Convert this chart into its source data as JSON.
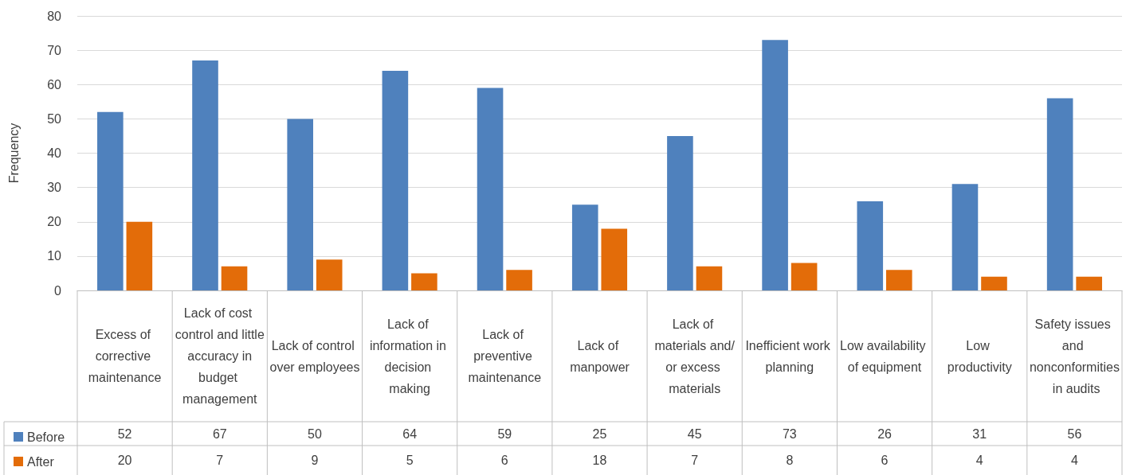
{
  "chart_data": {
    "type": "bar",
    "ylabel": "Frequency",
    "categories": [
      "Excess of corrective maintenance",
      "Lack of cost control and little accuracy in budget management",
      "Lack of control over employees",
      "Lack of information in decision making",
      "Lack of preventive maintenance",
      "Lack of manpower",
      "Lack of materials and/or excess materials",
      "Inefficient work planning",
      "Low availability of equipment",
      "Low productivity",
      "Safety issues and nonconformities in audits"
    ],
    "series": [
      {
        "name": "Before",
        "color": "#4f81bd",
        "values": [
          52,
          67,
          50,
          64,
          59,
          25,
          45,
          73,
          26,
          31,
          56
        ]
      },
      {
        "name": "After",
        "color": "#e36c09",
        "values": [
          20,
          7,
          9,
          5,
          6,
          18,
          7,
          8,
          6,
          4,
          4
        ]
      }
    ],
    "ylim": [
      0,
      80
    ],
    "yticks": [
      0,
      10,
      20,
      30,
      40,
      50,
      60,
      70,
      80
    ],
    "grid": "y",
    "legend": "bottom left",
    "data_labels": true
  }
}
